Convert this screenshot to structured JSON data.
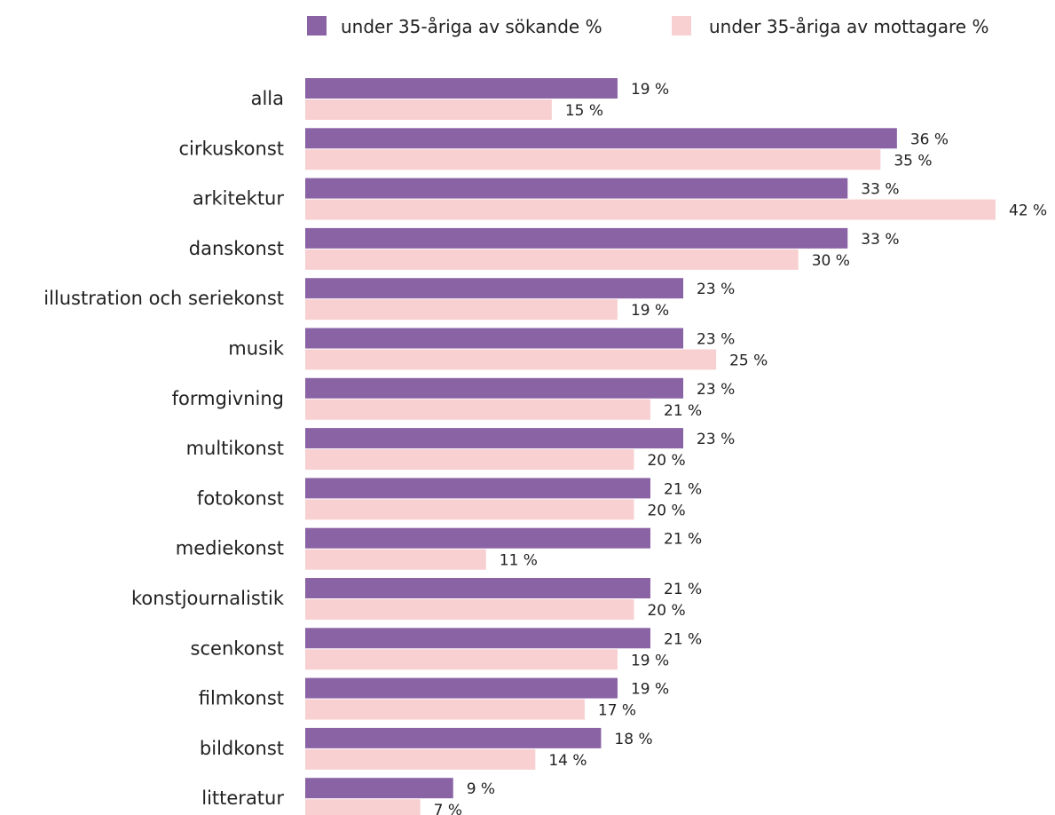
{
  "chart_data": {
    "type": "bar",
    "orientation": "horizontal",
    "categories": [
      "alla",
      "cirkuskonst",
      "arkitektur",
      "danskonst",
      "illustration och seriekonst",
      "musik",
      "formgivning",
      "multikonst",
      "fotokonst",
      "mediekonst",
      "konstjournalistik",
      "scenkonst",
      "filmkonst",
      "bildkonst",
      "litteratur"
    ],
    "series": [
      {
        "name": "under 35-åriga av sökande %",
        "color": "#8a63a5",
        "values": [
          19,
          36,
          33,
          33,
          23,
          23,
          23,
          23,
          21,
          21,
          21,
          21,
          19,
          18,
          9
        ],
        "labels": [
          "19 %",
          "36 %",
          "33 %",
          "33 %",
          "23 %",
          "23 %",
          "23 %",
          "23 %",
          "21 %",
          "21 %",
          "21 %",
          "21 %",
          "19 %",
          "18 %",
          "9 %"
        ]
      },
      {
        "name": "under 35-åriga av mottagare %",
        "color": "#f8d0d1",
        "values": [
          15,
          35,
          42,
          30,
          19,
          25,
          21,
          20,
          20,
          11,
          20,
          19,
          17,
          14,
          7
        ],
        "labels": [
          "15 %",
          "35 %",
          "42 %",
          "30 %",
          "19 %",
          "25 %",
          "21 %",
          "20 %",
          "20 %",
          "11 %",
          "20 %",
          "19 %",
          "17 %",
          "14 %",
          "7 %"
        ]
      }
    ],
    "xlim": [
      0,
      42
    ],
    "grid": false,
    "legend_position": "top-right",
    "title": "",
    "xlabel": "",
    "ylabel": ""
  }
}
